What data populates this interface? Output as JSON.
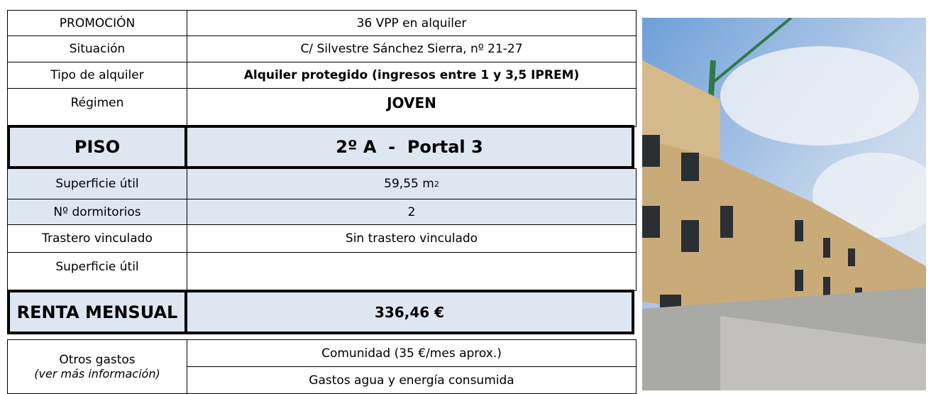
{
  "table": {
    "rows": [
      {
        "label": "PROMOCIÓN",
        "value": "36 VPP en alquiler"
      },
      {
        "label": "Situación",
        "value": "C/ Silvestre Sánchez Sierra, nº 21-27"
      },
      {
        "label": "Tipo de alquiler",
        "value": "Alquiler protegido (ingresos entre 1 y 3,5 IPREM)"
      },
      {
        "label": "Régimen",
        "value": "JOVEN"
      },
      {
        "label": "PISO",
        "value": "2º A  -  Portal 3"
      },
      {
        "label": "Superficie útil",
        "value": "59,55 m",
        "sup": "2"
      },
      {
        "label": "Nº dormitorios",
        "value": "2"
      },
      {
        "label": "Trastero vinculado",
        "value": "Sin trastero vinculado"
      },
      {
        "label": "Superficie útil"
      },
      {
        "label": "RENTA MENSUAL",
        "value": "336,46 €"
      },
      {
        "label": "Otros gastos",
        "note": "(ver más información)",
        "values": [
          "Comunidad (35 €/mes aprox.)",
          "Gastos agua y energía consumida"
        ]
      }
    ]
  }
}
